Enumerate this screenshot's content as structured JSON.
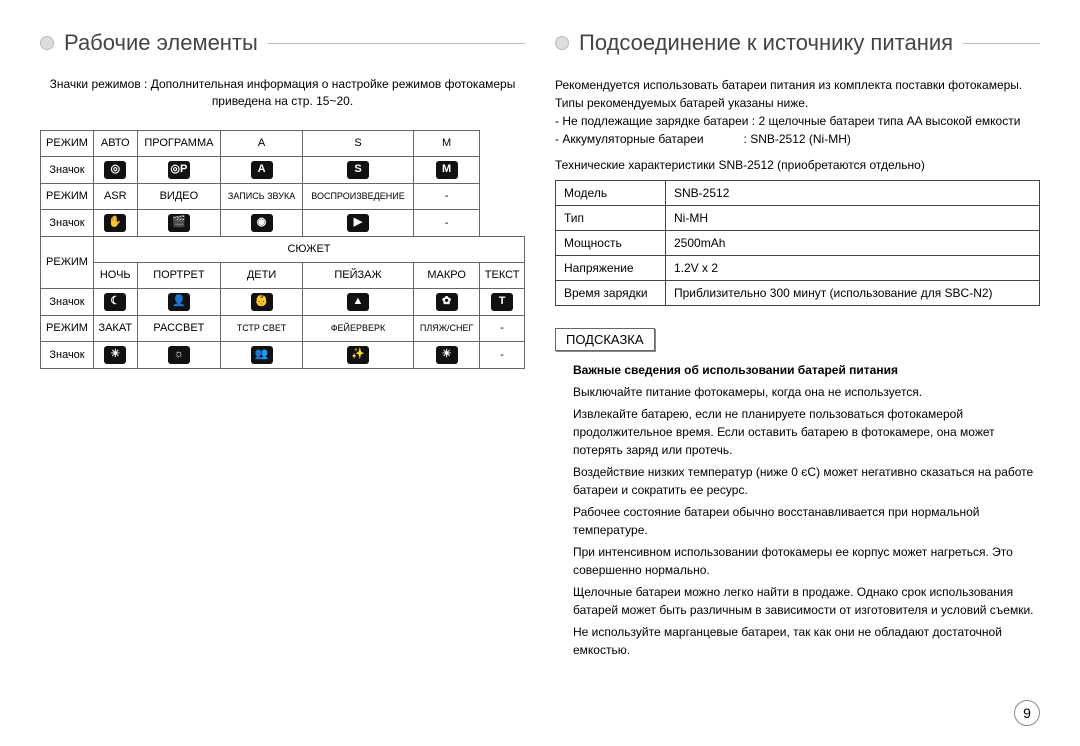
{
  "page_number": "9",
  "left": {
    "title": "Рабочие элементы",
    "intro": "Значки режимов : Дополнительная информация о настройке режимов фотокамеры приведена на стр. 15~20.",
    "row_label_mode": "РЕЖИМ",
    "row_label_icon": "Значок",
    "scene_label": "СЮЖЕТ",
    "modes_group1": [
      "АВТО",
      "ПРОГРАММА",
      "A",
      "S",
      "M"
    ],
    "icons_group1": [
      "◎",
      "◎P",
      "A",
      "S",
      "M"
    ],
    "modes_group2": [
      "ASR",
      "ВИДЕО",
      "ЗАПИСЬ ЗВУКА",
      "ВОСПРОИЗВЕДЕНИЕ",
      "-"
    ],
    "icons_group2": [
      "✋",
      "🎬",
      "◉",
      "▶",
      "-"
    ],
    "modes_group3": [
      "НОЧЬ",
      "ПОРТРЕТ",
      "ДЕТИ",
      "ПЕЙЗАЖ",
      "МАКРО",
      "ТЕКСТ"
    ],
    "icons_group3": [
      "☾",
      "👤",
      "👶",
      "▲",
      "✿",
      "T"
    ],
    "modes_group4": [
      "ЗАКАТ",
      "РАССВЕТ",
      "ТСТР СВЕТ",
      "ФЕЙЕРВЕРК",
      "ПЛЯЖ/СНЕГ",
      "-"
    ],
    "icons_group4": [
      "☀",
      "☼",
      "👥",
      "✨",
      "☀",
      "-"
    ]
  },
  "right": {
    "title": "Подсоединение к источнику питания",
    "intro_lines": [
      "Рекомендуется использовать батареи питания из комплекта поставки фотокамеры. Типы рекомендуемых батарей указаны ниже.",
      "- Не подлежащие зарядке батареи : 2 щелочные батареи типа AA высокой емкости",
      "- Аккумуляторные батареи            : SNB-2512 (Ni-MH)"
    ],
    "spec_intro": "Технические характеристики SNB-2512 (приобретаются отдельно)",
    "spec_rows": [
      {
        "k": "Модель",
        "v": "SNB-2512"
      },
      {
        "k": "Тип",
        "v": "Ni-MH"
      },
      {
        "k": "Мощность",
        "v": "2500mAh"
      },
      {
        "k": "Напряжение",
        "v": "1.2V x 2"
      },
      {
        "k": "Время зарядки",
        "v": "Приблизительно 300 минут (использование для SBC-N2)"
      }
    ],
    "tip_label": "ПОДСКАЗКА",
    "tip_heading": "Важные сведения об использовании батарей питания",
    "tips": [
      "Выключайте питание фотокамеры, когда она не используется.",
      "Извлекайте батарею, если не планируете пользоваться фотокамерой продолжительное время. Если оставить батарею в фотокамере, она может потерять заряд или протечь.",
      "Воздействие низких температур (ниже 0 єC) может негативно сказаться на работе батареи и сократить ее ресурс.",
      "Рабочее состояние батареи обычно восстанавливается при нормальной температуре.",
      "При интенсивном использовании фотокамеры ее корпус может нагреться. Это совершенно нормально.",
      "Щелочные батареи можно легко найти в продаже. Однако срок использования батарей может быть различным в зависимости от изготовителя и условий съемки.",
      "Не используйте марганцевые батареи, так как они не обладают достаточной емкостью."
    ]
  }
}
